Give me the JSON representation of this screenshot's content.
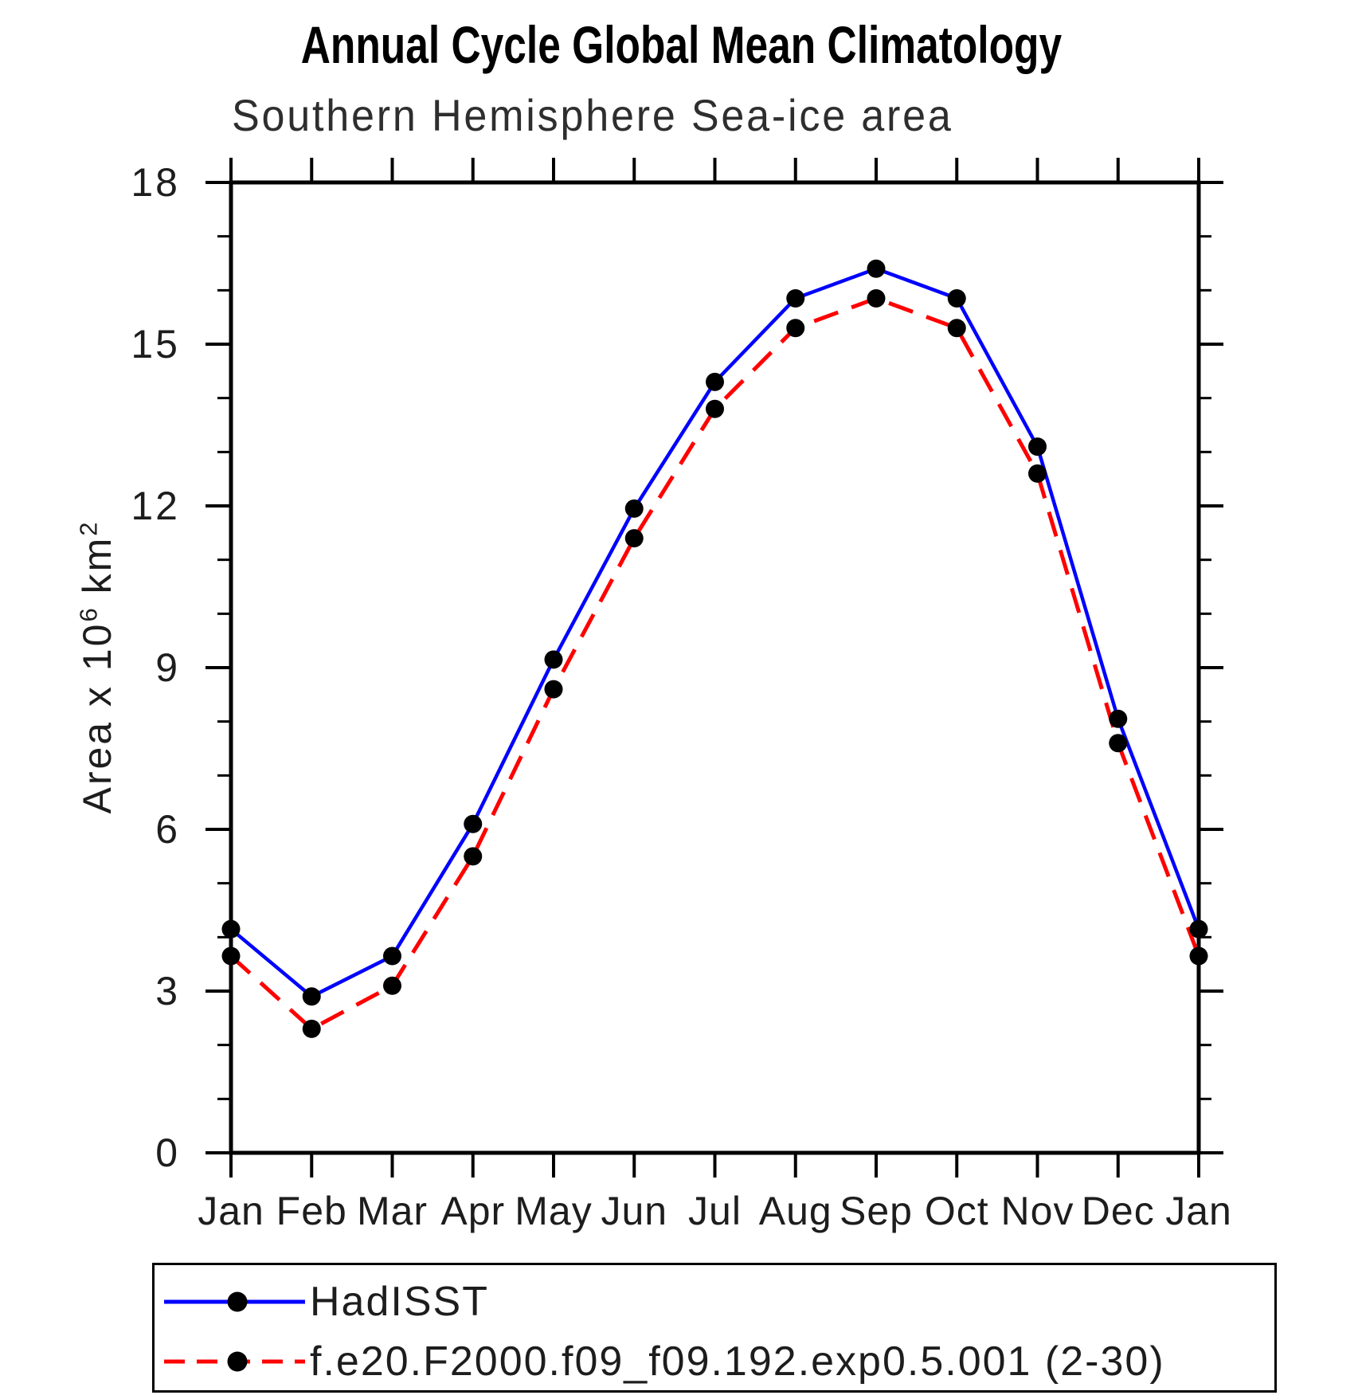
{
  "title": "Annual Cycle Global Mean Climatology",
  "subtitle": "Southern Hemisphere Sea-ice area",
  "ylabel": {
    "prefix": "Area x 10",
    "sup1": "6",
    "mid": " km",
    "sup2": "2"
  },
  "colors": {
    "background": "#ffffff",
    "axis": "#000000",
    "marker": "#000000",
    "hadisst_line": "#0000ff",
    "model_line": "#ff0000"
  },
  "chart_data": {
    "type": "line",
    "title": "Annual Cycle Global Mean Climatology",
    "subtitle": "Southern Hemisphere Sea-ice area",
    "xlabel": "",
    "ylabel": "Area x 10^6 km^2",
    "categories": [
      "Jan",
      "Feb",
      "Mar",
      "Apr",
      "May",
      "Jun",
      "Jul",
      "Aug",
      "Sep",
      "Oct",
      "Nov",
      "Dec",
      "Jan"
    ],
    "ylim": [
      0,
      18
    ],
    "yticks_major": [
      0,
      3,
      6,
      9,
      12,
      15,
      18
    ],
    "ytick_minor_step": 1,
    "grid": false,
    "frame": "box",
    "tick_direction": "out",
    "legend_position": "bottom-box",
    "series": [
      {
        "name": "HadISST",
        "color": "#0000ff",
        "line_style": "solid",
        "marker": "circle",
        "marker_color": "#000000",
        "values": [
          4.15,
          2.9,
          3.65,
          6.1,
          9.15,
          11.95,
          14.3,
          15.85,
          16.4,
          15.85,
          13.1,
          8.05,
          4.15
        ]
      },
      {
        "name": "f.e20.F2000.f09_f09.192.exp0.5.001 (2-30)",
        "color": "#ff0000",
        "line_style": "dashed",
        "marker": "circle",
        "marker_color": "#000000",
        "values": [
          3.65,
          2.3,
          3.1,
          5.5,
          8.6,
          11.4,
          13.8,
          15.3,
          15.85,
          15.3,
          12.6,
          7.6,
          3.65
        ]
      }
    ]
  }
}
